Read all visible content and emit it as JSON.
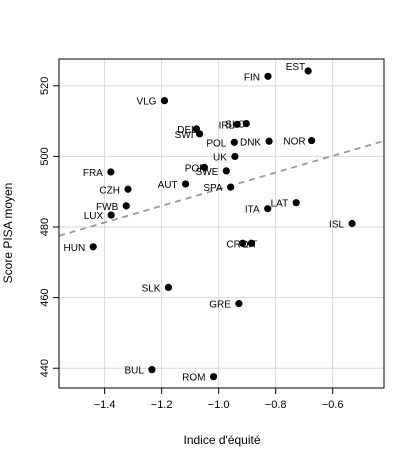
{
  "chart_data": {
    "type": "scatter",
    "title": "",
    "xlabel": "Indice d'équité",
    "ylabel": "Score PISA moyen",
    "xlim": [
      -1.56,
      -0.42
    ],
    "ylim": [
      434.4,
      527.6
    ],
    "x_ticks": [
      -1.4,
      -1.2,
      -1.0,
      -0.8,
      -0.6
    ],
    "x_tick_labels": [
      "−1.4",
      "−1.2",
      "−1.0",
      "−0.8",
      "−0.6"
    ],
    "y_ticks": [
      440,
      460,
      480,
      500,
      520
    ],
    "y_tick_labels": [
      "440",
      "460",
      "480",
      "500",
      "520"
    ],
    "grid": true,
    "trend_line": {
      "x": [
        -1.56,
        -0.42
      ],
      "y": [
        477.5,
        504.4
      ],
      "style": "dashed"
    },
    "points": [
      {
        "label": "EST",
        "x": -0.686,
        "y": 524.2
      },
      {
        "label": "FIN",
        "x": -0.827,
        "y": 522.7
      },
      {
        "label": "VLG",
        "x": -1.19,
        "y": 515.8
      },
      {
        "label": "IRL",
        "x": -0.935,
        "y": 509.1
      },
      {
        "label": "SLO",
        "x": -0.903,
        "y": 509.3
      },
      {
        "label": "DEU",
        "x": -1.078,
        "y": 507.8
      },
      {
        "label": "SWI",
        "x": -1.067,
        "y": 506.4
      },
      {
        "label": "DNK",
        "x": -0.823,
        "y": 504.3
      },
      {
        "label": "NOR",
        "x": -0.674,
        "y": 504.5
      },
      {
        "label": "POL",
        "x": -0.945,
        "y": 504.0
      },
      {
        "label": "UK",
        "x": -0.943,
        "y": 500.0
      },
      {
        "label": "POR",
        "x": -1.05,
        "y": 496.9
      },
      {
        "label": "SWE",
        "x": -0.973,
        "y": 495.9
      },
      {
        "label": "FRA",
        "x": -1.378,
        "y": 495.6
      },
      {
        "label": "AUT",
        "x": -1.116,
        "y": 492.2
      },
      {
        "label": "SPA",
        "x": -0.958,
        "y": 491.3
      },
      {
        "label": "CZH",
        "x": -1.318,
        "y": 490.7
      },
      {
        "label": "LAT",
        "x": -0.728,
        "y": 486.9
      },
      {
        "label": "FWB",
        "x": -1.324,
        "y": 486.0
      },
      {
        "label": "ITA",
        "x": -0.828,
        "y": 485.2
      },
      {
        "label": "LUX",
        "x": -1.377,
        "y": 483.4
      },
      {
        "label": "ISL",
        "x": -0.532,
        "y": 481.0
      },
      {
        "label": "CRO",
        "x": -0.916,
        "y": 475.4
      },
      {
        "label": "LIT",
        "x": -0.885,
        "y": 475.4
      },
      {
        "label": "HUN",
        "x": -1.44,
        "y": 474.4
      },
      {
        "label": "SLK",
        "x": -1.176,
        "y": 462.9
      },
      {
        "label": "GRE",
        "x": -0.929,
        "y": 458.3
      },
      {
        "label": "BUL",
        "x": -1.234,
        "y": 439.6
      },
      {
        "label": "ROM",
        "x": -1.018,
        "y": 437.6
      }
    ]
  }
}
